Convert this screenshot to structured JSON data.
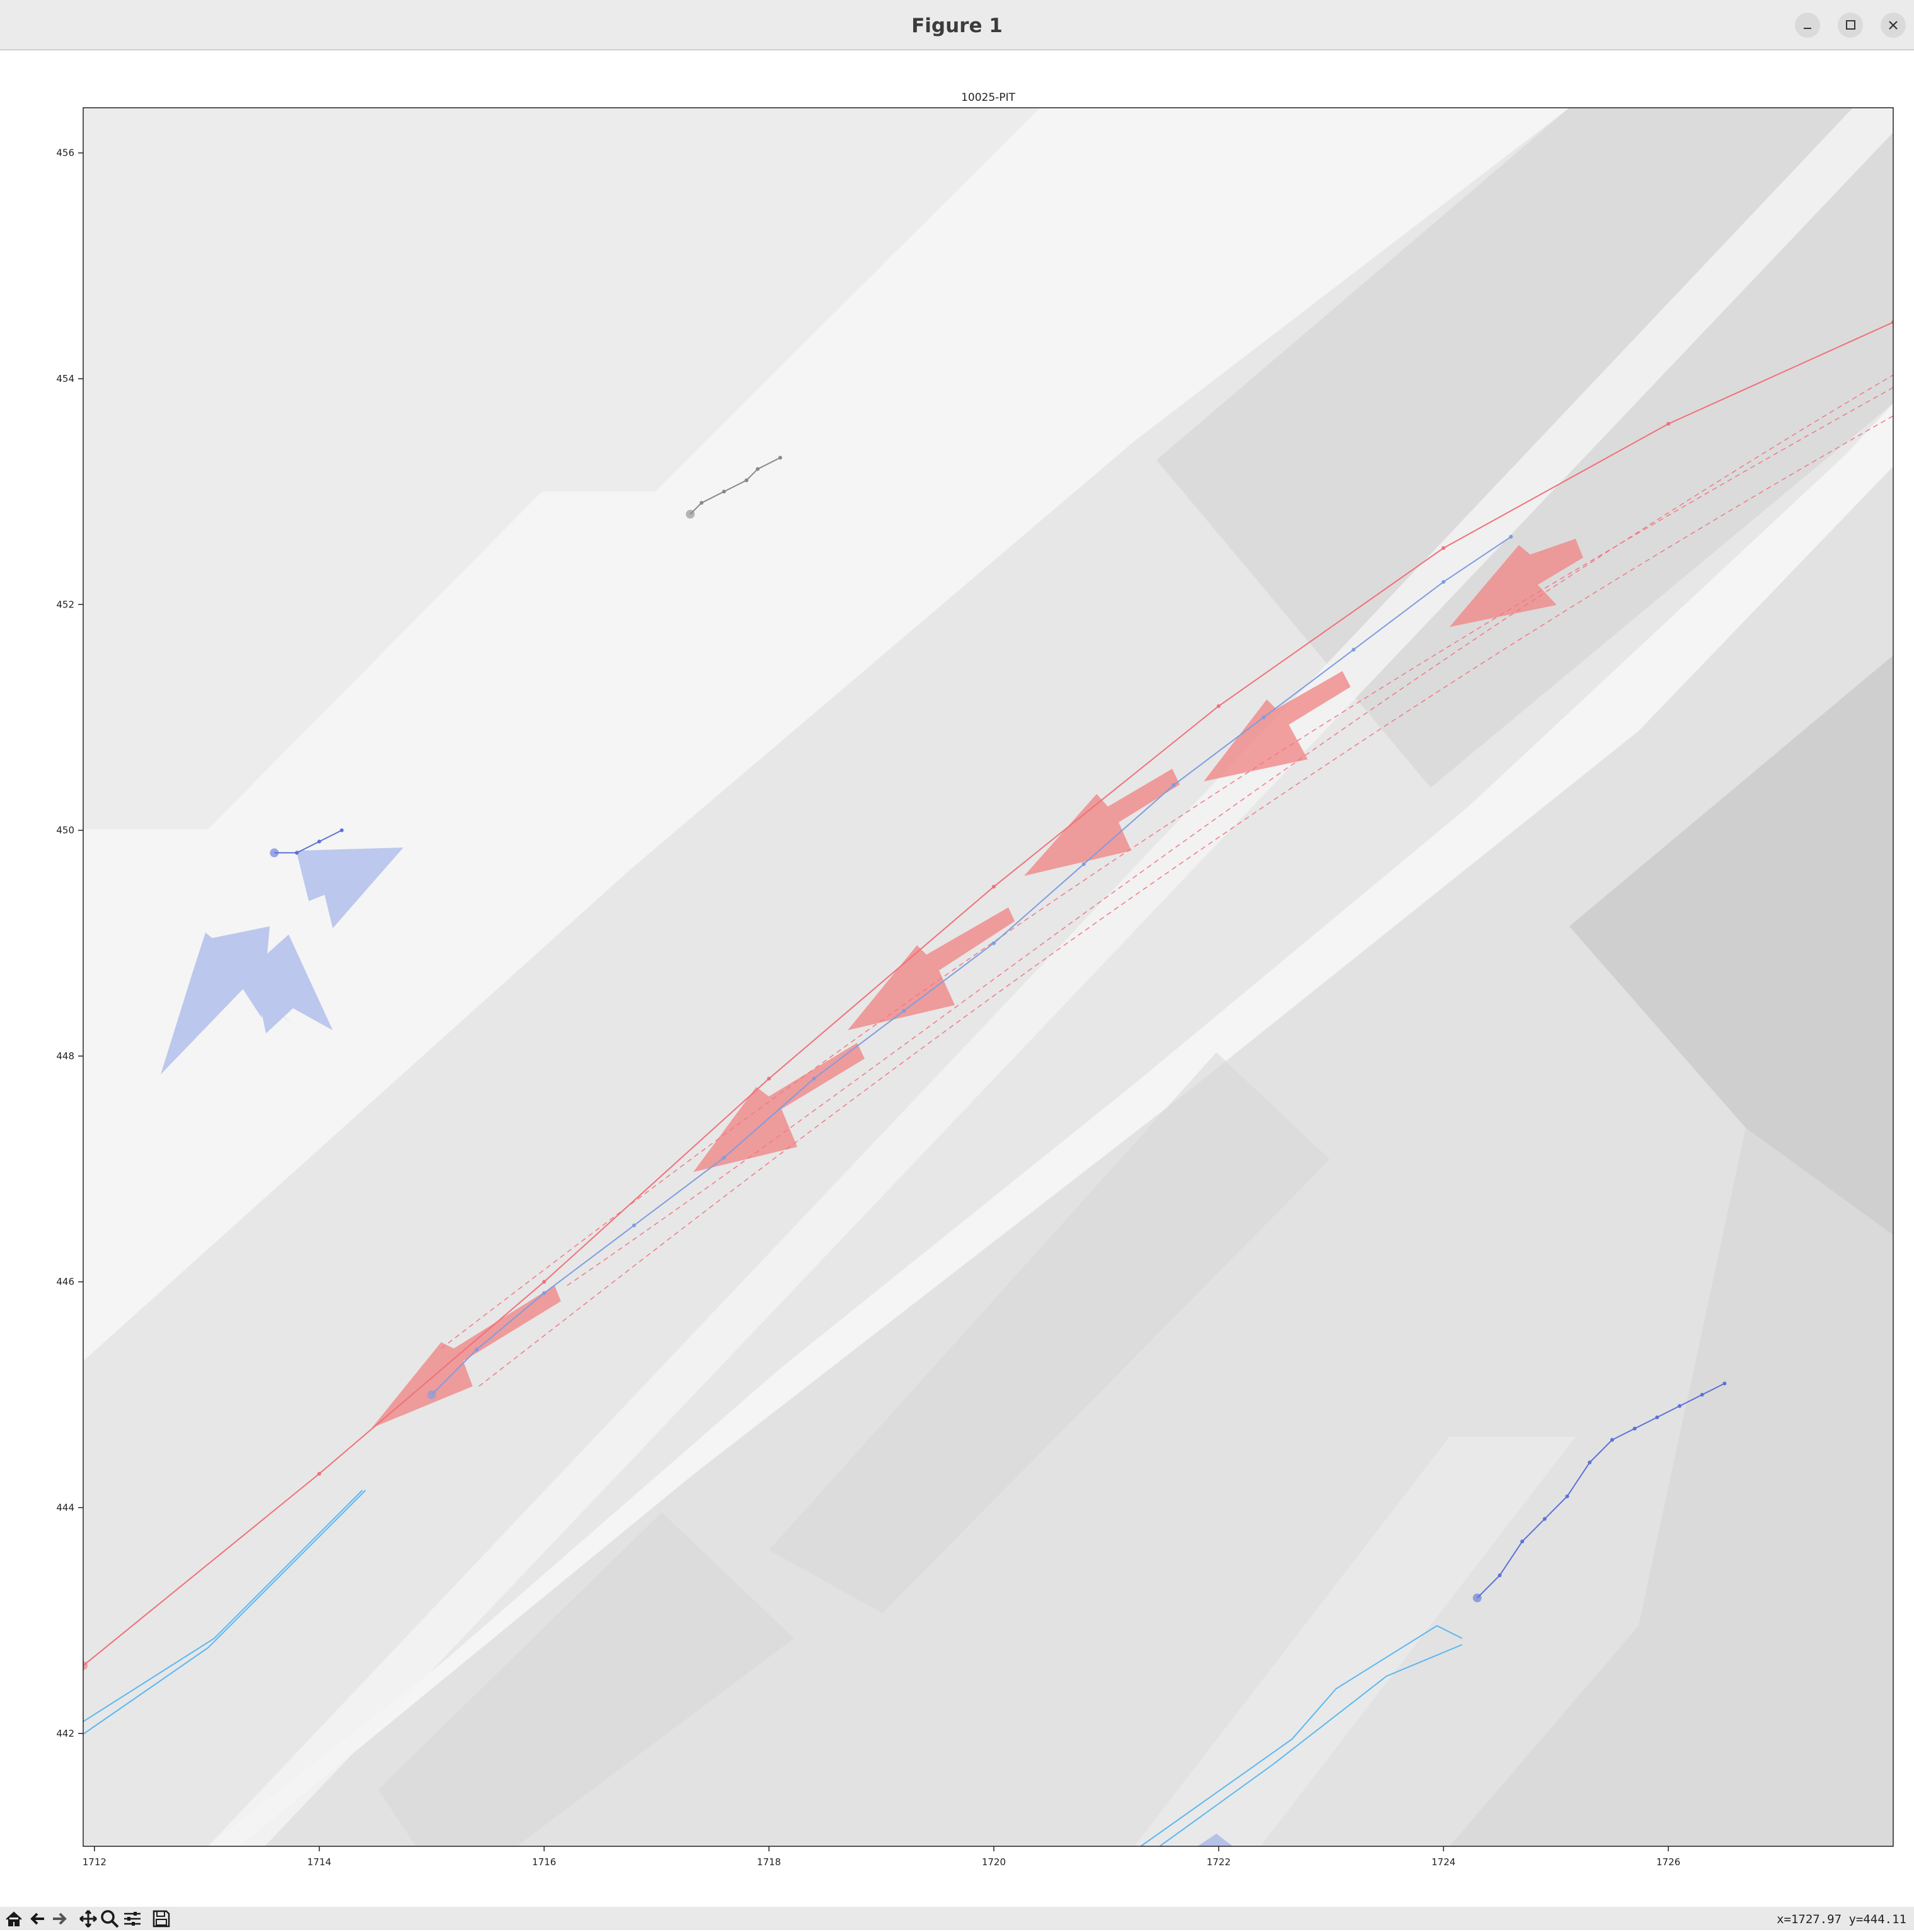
{
  "window": {
    "title": "Figure 1",
    "controls": [
      "minimize-icon",
      "maximize-icon",
      "close-icon"
    ]
  },
  "chart_data": {
    "type": "scatter",
    "title": "10025-PIT",
    "xlabel": "",
    "ylabel": "",
    "xlim": [
      1711.9,
      1728.0
    ],
    "ylim": [
      441.0,
      456.4
    ],
    "xticks": [
      1712,
      1714,
      1716,
      1718,
      1720,
      1722,
      1724,
      1726
    ],
    "yticks": [
      442,
      444,
      446,
      448,
      450,
      452,
      454,
      456
    ],
    "grid": false,
    "legend": "none",
    "series": [
      {
        "color": "#f0707a",
        "x": [
          1711.9,
          1714.0,
          1716.0,
          1718.0,
          1720.0,
          1722.0,
          1724.0,
          1726.0,
          1728.0
        ],
        "y": [
          442.6,
          444.3,
          446.0,
          447.8,
          449.5,
          451.1,
          452.5,
          453.6,
          454.5
        ]
      },
      {
        "color": "#7d9de0",
        "x": [
          1715.0,
          1715.4,
          1716.0,
          1716.8,
          1717.6,
          1718.4,
          1719.2,
          1720.0,
          1720.8,
          1721.6,
          1722.4,
          1723.2,
          1724.0,
          1724.6
        ],
        "y": [
          445.0,
          445.4,
          445.9,
          446.5,
          447.1,
          447.8,
          448.4,
          449.0,
          449.7,
          450.4,
          451.0,
          451.6,
          452.2,
          452.6
        ]
      },
      {
        "color": "#5a72d8",
        "x": [
          1724.3,
          1724.5,
          1724.7,
          1724.9,
          1725.1,
          1725.3,
          1725.5,
          1725.7,
          1725.9,
          1726.1,
          1726.3,
          1726.5
        ],
        "y": [
          443.2,
          443.4,
          443.7,
          443.9,
          444.1,
          444.4,
          444.6,
          444.7,
          444.8,
          444.9,
          445.0,
          445.1
        ]
      },
      {
        "color": "#888888",
        "x": [
          1717.3,
          1717.4,
          1717.6,
          1717.8,
          1717.9,
          1718.1
        ],
        "y": [
          452.8,
          452.9,
          453.0,
          453.1,
          453.2,
          453.3
        ]
      },
      {
        "color": "#5a72d8",
        "x": [
          1713.6,
          1713.8,
          1714.0,
          1714.2
        ],
        "y": [
          449.8,
          449.8,
          449.9,
          450.0
        ]
      }
    ]
  },
  "status": {
    "coords": "x=1727.97 y=444.11"
  },
  "toolbar": {
    "buttons": [
      "home-icon",
      "back-icon",
      "forward-icon",
      "pan-icon",
      "zoom-icon",
      "configure-icon",
      "save-icon"
    ]
  }
}
